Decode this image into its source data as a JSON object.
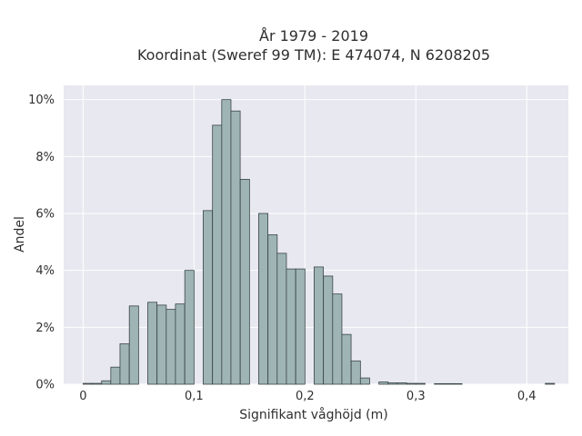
{
  "chart_data": {
    "type": "bar",
    "title_lines": [
      "År 1979 - 2019",
      "Koordinat (Sweref 99 TM): E 474074, N 6208205"
    ],
    "xlabel": "Signifikant våghöjd (m)",
    "ylabel": "Andel",
    "xlim": [
      -0.0175,
      0.4375
    ],
    "ylim": [
      0,
      10.5
    ],
    "x_ticks": [
      {
        "value": 0.0,
        "label": "0"
      },
      {
        "value": 0.1,
        "label": "0,1"
      },
      {
        "value": 0.2,
        "label": "0,2"
      },
      {
        "value": 0.3,
        "label": "0,3"
      },
      {
        "value": 0.4,
        "label": "0,4"
      }
    ],
    "y_ticks": [
      {
        "value": 0,
        "label": "0%"
      },
      {
        "value": 2,
        "label": "2%"
      },
      {
        "value": 4,
        "label": "4%"
      },
      {
        "value": 6,
        "label": "6%"
      },
      {
        "value": 8,
        "label": "8%"
      },
      {
        "value": 10,
        "label": "10%"
      }
    ],
    "bin_width": 0.00833,
    "bins": [
      {
        "x": 0.0,
        "y": 0.03
      },
      {
        "x": 0.0083,
        "y": 0.03
      },
      {
        "x": 0.0167,
        "y": 0.12
      },
      {
        "x": 0.025,
        "y": 0.6
      },
      {
        "x": 0.0333,
        "y": 1.42
      },
      {
        "x": 0.0417,
        "y": 2.75
      },
      {
        "x": 0.0583,
        "y": 2.88
      },
      {
        "x": 0.0667,
        "y": 2.78
      },
      {
        "x": 0.075,
        "y": 2.63
      },
      {
        "x": 0.0833,
        "y": 2.82
      },
      {
        "x": 0.0917,
        "y": 4.0
      },
      {
        "x": 0.1083,
        "y": 6.1
      },
      {
        "x": 0.1167,
        "y": 9.1
      },
      {
        "x": 0.125,
        "y": 10.0
      },
      {
        "x": 0.1333,
        "y": 9.6
      },
      {
        "x": 0.1417,
        "y": 7.2
      },
      {
        "x": 0.1583,
        "y": 6.0
      },
      {
        "x": 0.1667,
        "y": 5.25
      },
      {
        "x": 0.175,
        "y": 4.6
      },
      {
        "x": 0.1833,
        "y": 4.05
      },
      {
        "x": 0.1917,
        "y": 4.05
      },
      {
        "x": 0.2083,
        "y": 4.12
      },
      {
        "x": 0.2167,
        "y": 3.8
      },
      {
        "x": 0.225,
        "y": 3.17
      },
      {
        "x": 0.2333,
        "y": 1.75
      },
      {
        "x": 0.2417,
        "y": 0.82
      },
      {
        "x": 0.25,
        "y": 0.22
      },
      {
        "x": 0.2667,
        "y": 0.08
      },
      {
        "x": 0.275,
        "y": 0.05
      },
      {
        "x": 0.2833,
        "y": 0.05
      },
      {
        "x": 0.2917,
        "y": 0.03
      },
      {
        "x": 0.3,
        "y": 0.03
      },
      {
        "x": 0.3167,
        "y": 0.02
      },
      {
        "x": 0.325,
        "y": 0.02
      },
      {
        "x": 0.3333,
        "y": 0.02
      },
      {
        "x": 0.4167,
        "y": 0.03
      }
    ],
    "grid": true,
    "legend": false,
    "colors": {
      "plot_background": "#e8e8f0",
      "grid": "#ffffff",
      "bar_fill": "#9fb5b5",
      "bar_edge": "#3a4545",
      "text": "#2f2f2f"
    }
  }
}
